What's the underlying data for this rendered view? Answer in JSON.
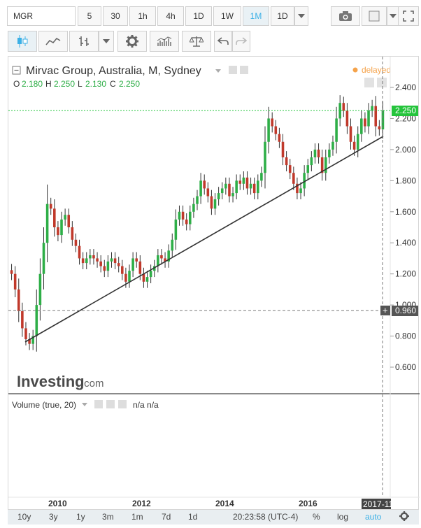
{
  "toolbar": {
    "symbol": "MGR",
    "timeframes": [
      "5",
      "30",
      "1h",
      "4h",
      "1D",
      "1W",
      "1M",
      "1D"
    ],
    "active_timeframe": "1M"
  },
  "legend": {
    "title": "Mirvac Group, Australia, M, Sydney",
    "status": "delayed",
    "o_label": "O",
    "o_value": "2.180",
    "h_label": "H",
    "h_value": "2.250",
    "l_label": "L",
    "l_value": "2.130",
    "c_label": "C",
    "c_value": "2.250"
  },
  "volume": {
    "title": "Volume (true, 20)",
    "values": "n/a n/a"
  },
  "watermark": {
    "brand": "Investing",
    "suffix": ".com"
  },
  "price_axis": {
    "ticks": [
      "2.400",
      "2.200",
      "2.000",
      "1.800",
      "1.600",
      "1.400",
      "1.200",
      "1.000",
      "0.800",
      "0.600"
    ],
    "last_price": "2.250",
    "crosshair_price": "0.960"
  },
  "time_axis": {
    "ticks": [
      "2010",
      "2012",
      "2014",
      "2016"
    ],
    "crosshair_date": "2017-11"
  },
  "bottom_bar": {
    "ranges": [
      "10y",
      "3y",
      "1y",
      "3m",
      "1m",
      "7d",
      "1d"
    ],
    "clock": "20:23:58 (UTC-4)",
    "percent": "%",
    "log": "log",
    "auto": "auto"
  },
  "colors": {
    "up": "#2eae47",
    "down": "#c0392b",
    "accent": "#3bb0e6",
    "last": "#25c43c",
    "status": "#f5a34b"
  },
  "chart_data": {
    "type": "candlestick",
    "title": "Mirvac Group, Australia, M, Sydney",
    "x_range": [
      "2008-10",
      "2017-11"
    ],
    "y_range": [
      0.5,
      2.5
    ],
    "closes": [
      1.2,
      1.1,
      0.96,
      0.85,
      0.78,
      0.75,
      0.8,
      1.0,
      1.2,
      1.4,
      1.65,
      1.62,
      1.5,
      1.45,
      1.55,
      1.58,
      1.5,
      1.42,
      1.38,
      1.3,
      1.27,
      1.3,
      1.32,
      1.3,
      1.28,
      1.25,
      1.22,
      1.28,
      1.3,
      1.27,
      1.25,
      1.2,
      1.15,
      1.22,
      1.3,
      1.28,
      1.2,
      1.15,
      1.18,
      1.22,
      1.25,
      1.32,
      1.3,
      1.28,
      1.35,
      1.42,
      1.55,
      1.6,
      1.55,
      1.52,
      1.6,
      1.65,
      1.7,
      1.8,
      1.75,
      1.7,
      1.62,
      1.68,
      1.72,
      1.75,
      1.78,
      1.7,
      1.72,
      1.8,
      1.78,
      1.82,
      1.75,
      1.78,
      1.72,
      1.8,
      1.85,
      2.05,
      2.2,
      2.15,
      2.1,
      2.05,
      1.95,
      1.9,
      1.85,
      1.78,
      1.72,
      1.75,
      1.85,
      1.9,
      1.95,
      2.0,
      1.95,
      1.85,
      1.95,
      2.0,
      2.05,
      2.2,
      2.3,
      2.25,
      2.15,
      2.05,
      2.0,
      2.1,
      2.2,
      2.15,
      2.25,
      2.28,
      2.15,
      2.13,
      2.25
    ]
  }
}
